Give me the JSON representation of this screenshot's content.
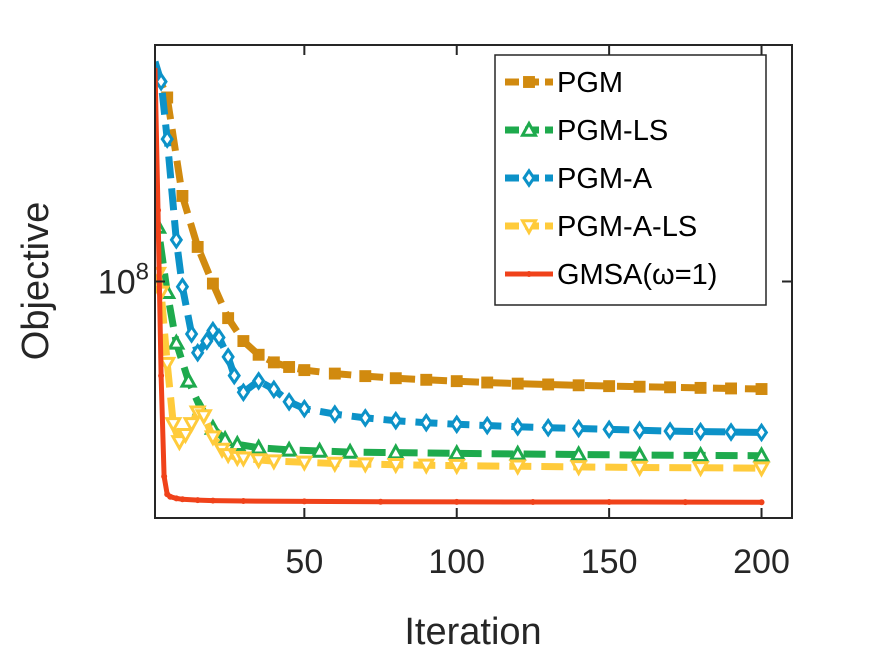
{
  "chart_data": {
    "type": "line",
    "xlabel": "Iteration",
    "ylabel": "Objective",
    "xlim": [
      1,
      210
    ],
    "ylim": [
      10000000,
      1000000000
    ],
    "yscale": "log",
    "xticks": [
      50,
      100,
      150,
      200
    ],
    "xtick_labels": [
      "50",
      "100",
      "150",
      "200"
    ],
    "yticks": [
      100000000
    ],
    "ytick_labels": [
      {
        "base": "10",
        "exp": "8"
      }
    ],
    "grid": false,
    "box": true,
    "legend_position": "top-right",
    "series": [
      {
        "name": "PGM",
        "color": "#D18A0F",
        "marker": "square",
        "x": [
          1,
          5,
          10,
          15,
          20,
          25,
          30,
          35,
          40,
          45,
          50,
          60,
          70,
          80,
          90,
          100,
          110,
          120,
          130,
          140,
          150,
          160,
          170,
          180,
          190,
          200
        ],
        "y": [
          800000000,
          600000000,
          230000000,
          140000000,
          98000000,
          70000000,
          56000000,
          49000000,
          45500000,
          43500000,
          42200000,
          40800000,
          39800000,
          39000000,
          38400000,
          37900000,
          37400000,
          37000000,
          36700000,
          36400000,
          36100000,
          35900000,
          35700000,
          35500000,
          35300000,
          35100000
        ]
      },
      {
        "name": "PGM-LS",
        "color": "#1EAA4D",
        "marker": "triangle-up",
        "x": [
          1,
          2,
          5,
          8,
          12,
          16,
          20,
          24,
          28,
          35,
          45,
          55,
          65,
          80,
          100,
          120,
          140,
          160,
          180,
          200
        ],
        "y": [
          200000000,
          170000000,
          90000000,
          55000000,
          38000000,
          29000000,
          24000000,
          21500000,
          20500000,
          19800000,
          19400000,
          19200000,
          19000000,
          18900000,
          18750000,
          18650000,
          18550000,
          18450000,
          18400000,
          18350000
        ]
      },
      {
        "name": "PGM-A",
        "color": "#0C92C8",
        "marker": "diamond",
        "x": [
          1,
          3,
          5,
          8,
          10,
          13,
          15,
          18,
          20,
          22,
          25,
          27,
          30,
          35,
          40,
          45,
          50,
          60,
          70,
          80,
          90,
          100,
          110,
          120,
          130,
          140,
          150,
          160,
          170,
          180,
          190,
          200
        ],
        "y": [
          850000000,
          700000000,
          400000000,
          150000000,
          95000000,
          60000000,
          50000000,
          56000000,
          62000000,
          58000000,
          48000000,
          40000000,
          34000000,
          38000000,
          35000000,
          31000000,
          29000000,
          27500000,
          26500000,
          25800000,
          25300000,
          24900000,
          24600000,
          24300000,
          24100000,
          23900000,
          23700000,
          23500000,
          23300000,
          23200000,
          23100000,
          23000000
        ]
      },
      {
        "name": "PGM-A-LS",
        "color": "#FFCB3B",
        "marker": "triangle-down",
        "x": [
          1,
          2,
          3,
          5,
          7,
          9,
          11,
          13,
          15,
          17,
          20,
          23,
          25,
          28,
          30,
          35,
          40,
          50,
          60,
          70,
          80,
          90,
          100,
          120,
          140,
          160,
          180,
          200
        ],
        "y": [
          110000000,
          108000000,
          90000000,
          45000000,
          25000000,
          21000000,
          22500000,
          25000000,
          28000000,
          27000000,
          22000000,
          19500000,
          18500000,
          18000000,
          17900000,
          17600000,
          17400000,
          17200000,
          17000000,
          16900000,
          16800000,
          16700000,
          16650000,
          16550000,
          16450000,
          16350000,
          16300000,
          16250000
        ]
      },
      {
        "name": "GMSA(ω=1)",
        "color": "#F0421A",
        "marker": "dot",
        "x": [
          1,
          2,
          3,
          4,
          5,
          6,
          8,
          10,
          15,
          20,
          30,
          50,
          75,
          100,
          125,
          150,
          175,
          200
        ],
        "y": [
          800000000,
          200000000,
          40000000,
          15000000,
          12600000,
          12300000,
          12100000,
          12000000,
          11900000,
          11850000,
          11800000,
          11750000,
          11720000,
          11700000,
          11690000,
          11680000,
          11670000,
          11660000
        ]
      }
    ]
  }
}
